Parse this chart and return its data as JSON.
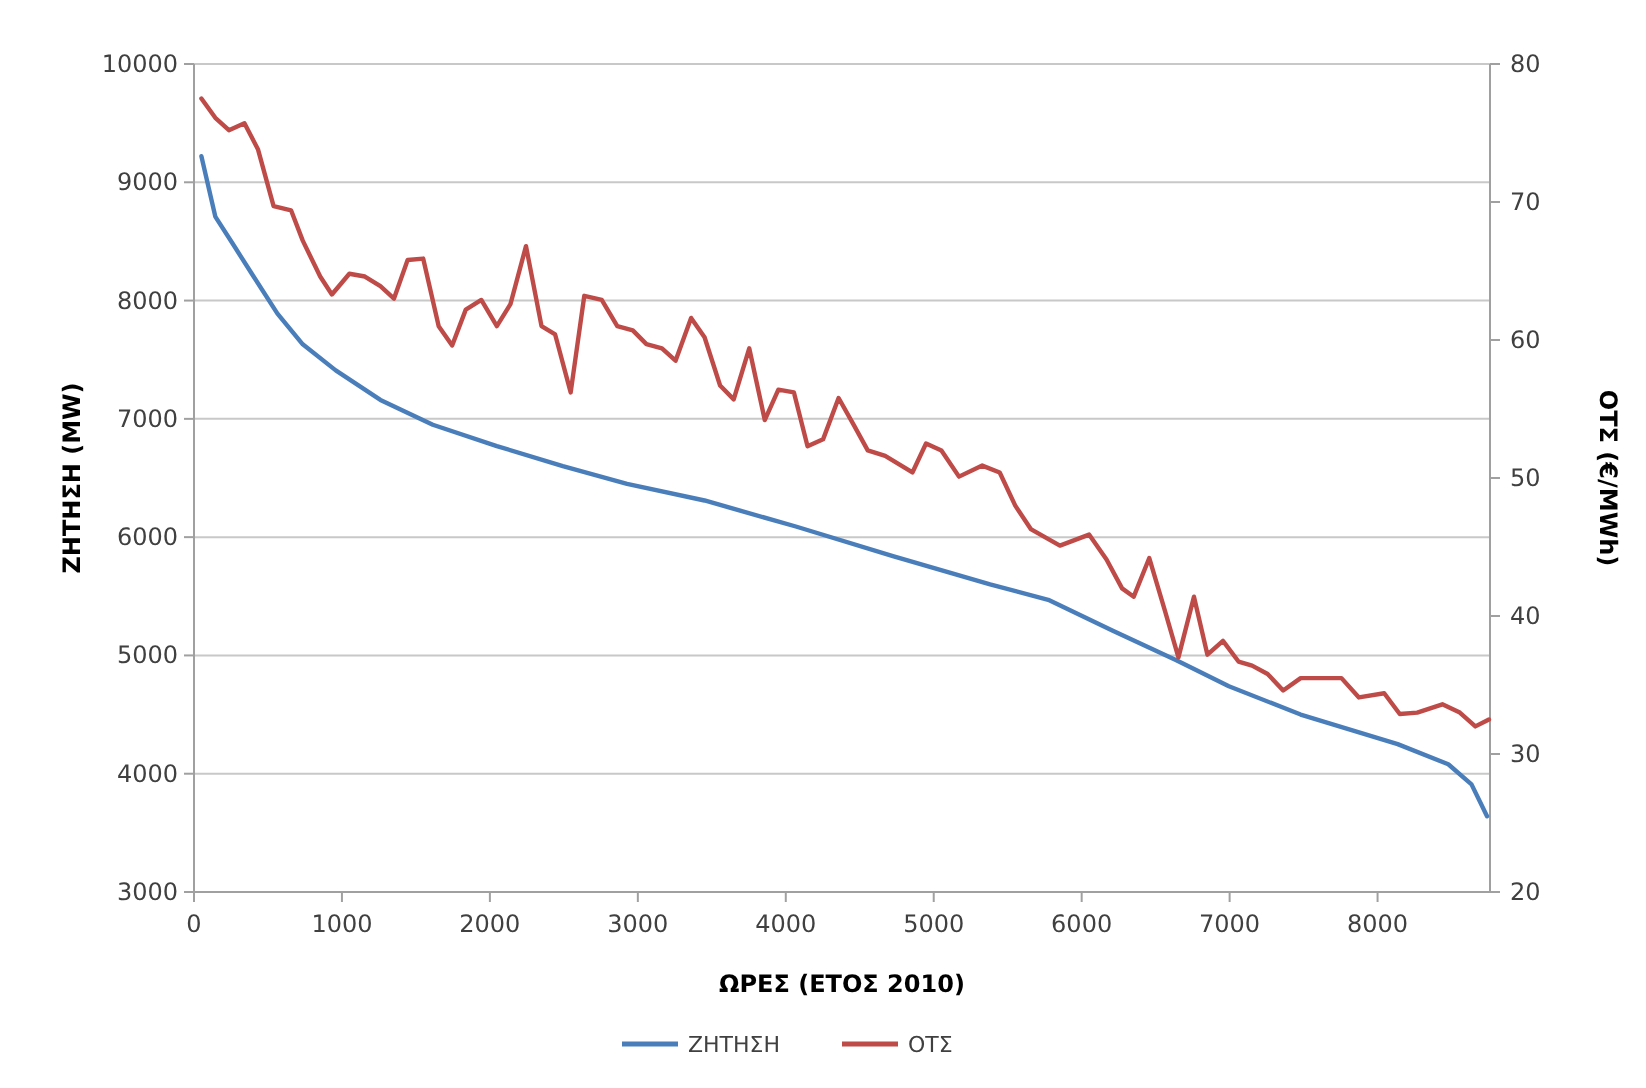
{
  "chart_data": {
    "type": "line",
    "xlabel": "ΩΡΕΣ (ΕΤΟΣ 2010)",
    "ylabel": "ΖΗΤΗΣΗ (MW)",
    "y2label": "ΟΤΣ (€/MWh)",
    "xlim": [
      0,
      8760
    ],
    "xticks": [
      0,
      1000,
      2000,
      3000,
      4000,
      5000,
      6000,
      7000,
      8000
    ],
    "ylim": [
      3000,
      10000
    ],
    "yticks": [
      3000,
      4000,
      5000,
      6000,
      7000,
      8000,
      9000,
      10000
    ],
    "y2lim": [
      20,
      80
    ],
    "y2ticks": [
      20,
      30,
      40,
      50,
      60,
      70,
      80
    ],
    "grid": "y",
    "legend": "bottom",
    "marker": "none",
    "line_style": "solid",
    "series": [
      {
        "name": "ΖΗΤΗΣΗ",
        "color": "#4a7ebb",
        "x": [
          50,
          144,
          262,
          394,
          564,
          735,
          958,
          1260,
          1614,
          2047,
          2493,
          2927,
          3451,
          4068,
          4724,
          5381,
          5774,
          6207,
          6640,
          6995,
          7480,
          8136,
          8478,
          8635,
          8740
        ],
        "values": [
          9220,
          8710,
          8480,
          8220,
          7890,
          7630,
          7410,
          7160,
          6950,
          6770,
          6600,
          6450,
          6310,
          6090,
          5840,
          5600,
          5470,
          5210,
          4960,
          4740,
          4500,
          4250,
          4080,
          3910,
          3640
        ]
      },
      {
        "name": "ΟΤΣ",
        "color": "#be4b48",
        "axis": "y2",
        "x": [
          50,
          144,
          236,
          341,
          433,
          538,
          656,
          735,
          853,
          932,
          1050,
          1155,
          1260,
          1352,
          1444,
          1549,
          1654,
          1745,
          1837,
          1942,
          2047,
          2139,
          2244,
          2349,
          2441,
          2546,
          2638,
          2756,
          2861,
          2966,
          3058,
          3163,
          3255,
          3360,
          3451,
          3556,
          3648,
          3753,
          3858,
          3950,
          4055,
          4147,
          4252,
          4357,
          4462,
          4554,
          4672,
          4856,
          4948,
          5052,
          5171,
          5328,
          5446,
          5551,
          5656,
          5853,
          6050,
          6168,
          6273,
          6352,
          6457,
          6562,
          6654,
          6759,
          6850,
          6955,
          7060,
          7152,
          7257,
          7362,
          7480,
          7756,
          7874,
          8045,
          8150,
          8268,
          8438,
          8556,
          8661,
          8753
        ],
        "values": [
          77.5,
          76.1,
          75.2,
          75.7,
          73.8,
          69.7,
          69.4,
          67.2,
          64.6,
          63.3,
          64.8,
          64.6,
          63.9,
          63.0,
          65.8,
          65.9,
          61.0,
          59.6,
          62.2,
          62.9,
          61.0,
          62.6,
          66.8,
          61.0,
          60.4,
          56.2,
          63.2,
          62.9,
          61.0,
          60.7,
          59.7,
          59.4,
          58.5,
          61.6,
          60.2,
          56.7,
          55.7,
          59.4,
          54.2,
          56.4,
          56.2,
          52.3,
          52.8,
          55.8,
          53.8,
          52.0,
          51.6,
          50.4,
          52.5,
          52.0,
          50.1,
          50.9,
          50.4,
          48.0,
          46.3,
          45.1,
          45.9,
          44.1,
          42.0,
          41.4,
          44.2,
          40.4,
          37.0,
          41.4,
          37.2,
          38.2,
          36.7,
          36.4,
          35.8,
          34.6,
          35.5,
          35.5,
          34.1,
          34.4,
          32.9,
          33.0,
          33.6,
          33.0,
          32.0,
          32.5
        ]
      }
    ]
  }
}
